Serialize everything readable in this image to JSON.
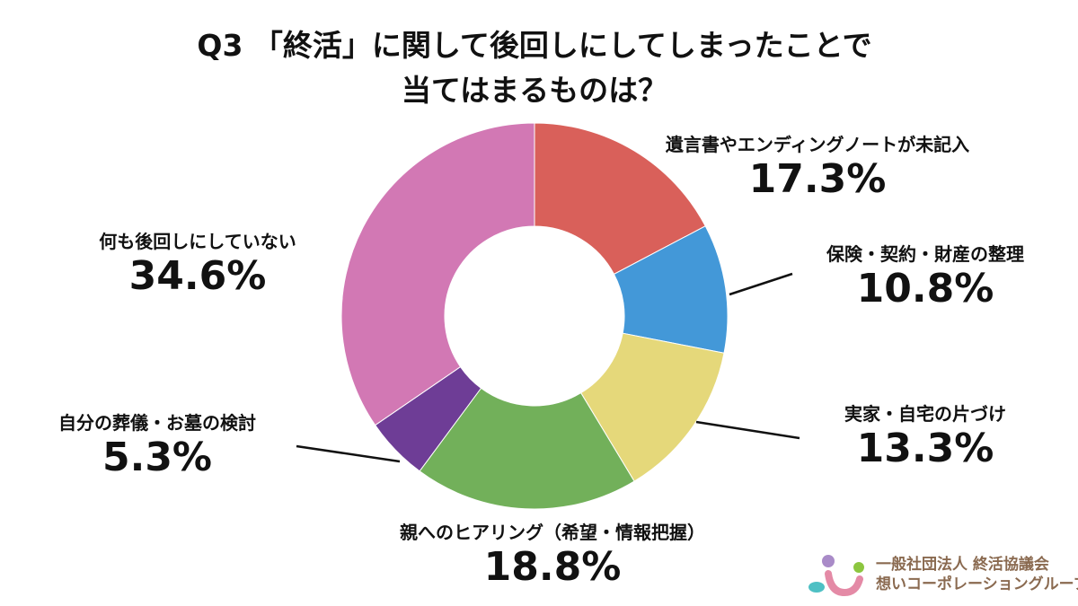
{
  "chart_data": {
    "type": "pie",
    "variant": "donut",
    "title": [
      "Q3 「終活」に関して後回しにしてしまったことで",
      "当てはまるものは？"
    ],
    "categories": [
      "遺言書やエンディングノートが未記入",
      "保険・契約・財産の整理",
      "実家・自宅の片づけ",
      "親へのヒアリング（希望・情報把握）",
      "自分の葬儀・お墓の検討",
      "何も後回しにしていない"
    ],
    "values": [
      17.3,
      10.8,
      13.3,
      18.8,
      5.3,
      34.6
    ],
    "labels": [
      "17.3%",
      "10.8%",
      "13.3%",
      "18.8%",
      "5.3%",
      "34.6%"
    ],
    "colors": [
      "#d9605a",
      "#4398d8",
      "#e5d87a",
      "#72b05a",
      "#6e3d96",
      "#d278b4"
    ],
    "start": "top",
    "direction": "clockwise"
  },
  "logo": {
    "line1": "一般社団法人 終活協議会",
    "line2": "想いコーポレーショングループ"
  }
}
